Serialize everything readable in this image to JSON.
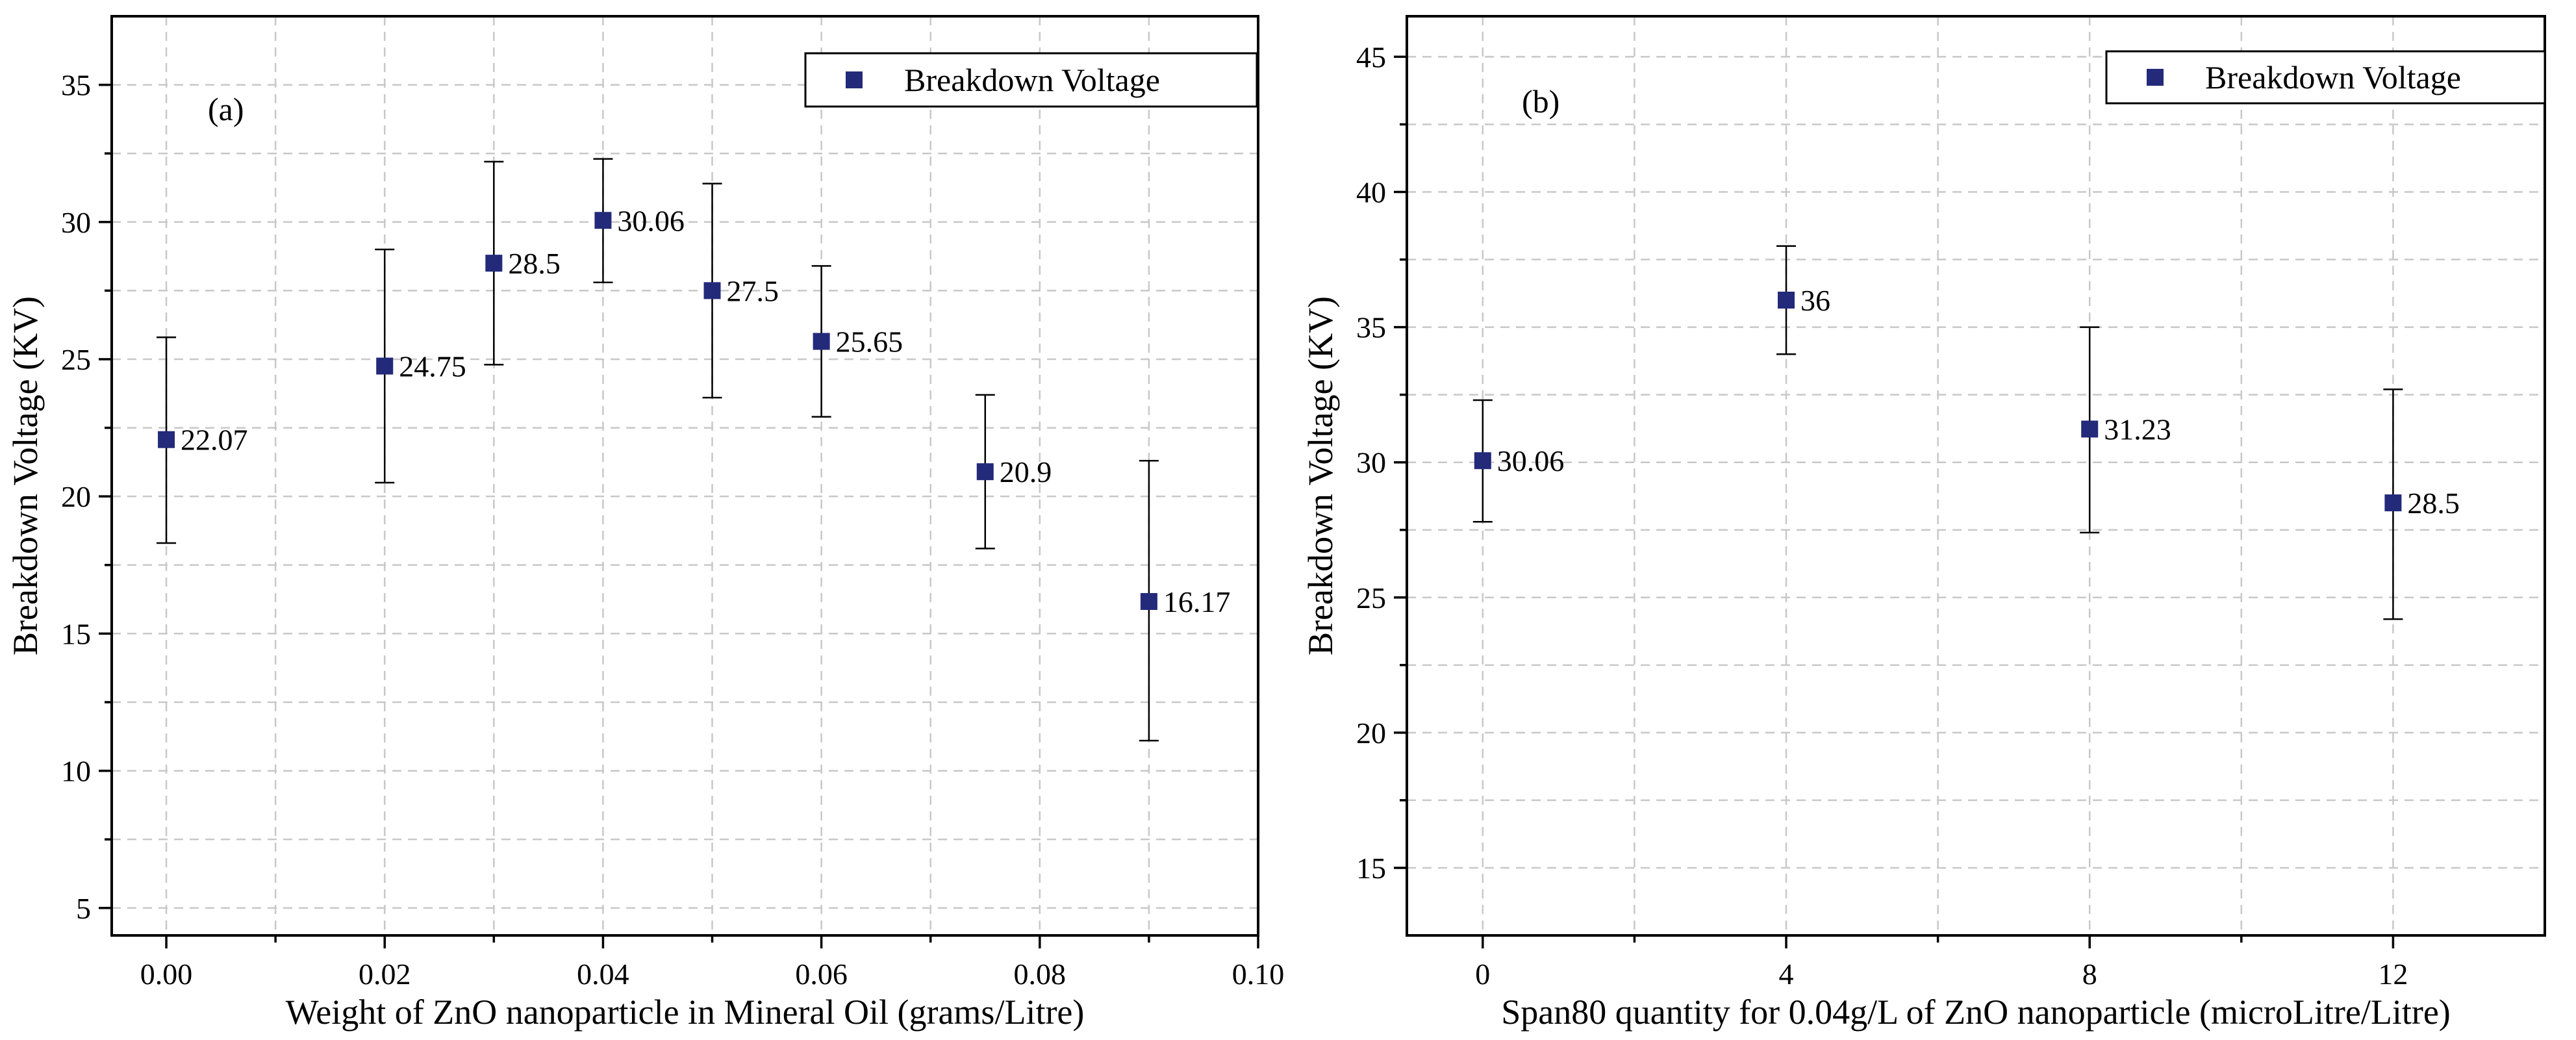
{
  "marker_color": "#232a7a",
  "chart_data": [
    {
      "id": "a",
      "type": "scatter",
      "panel_label": "(a)",
      "xlabel": "Weight of ZnO nanoparticle in Mineral Oil (grams/Litre)",
      "ylabel": "Breakdown Voltage (KV)",
      "xlim": [
        -0.005,
        0.1
      ],
      "ylim": [
        4,
        37.5
      ],
      "xticks": [
        0.0,
        0.02,
        0.04,
        0.06,
        0.08,
        0.1
      ],
      "xtick_labels": [
        "0.00",
        "0.02",
        "0.04",
        "0.06",
        "0.08",
        "0.10"
      ],
      "xminor": [
        0.01,
        0.03,
        0.05,
        0.07,
        0.09
      ],
      "yticks": [
        5,
        10,
        15,
        20,
        25,
        30,
        35
      ],
      "ytick_labels": [
        "5",
        "10",
        "15",
        "20",
        "25",
        "30",
        "35"
      ],
      "yminor": [
        7.5,
        12.5,
        17.5,
        22.5,
        27.5,
        32.5
      ],
      "grid": true,
      "legend": {
        "label": "Breakdown Voltage",
        "position": "top-right"
      },
      "series": [
        {
          "name": "Breakdown Voltage",
          "x": [
            0.0,
            0.02,
            0.03,
            0.04,
            0.05,
            0.06,
            0.075,
            0.09
          ],
          "y": [
            22.07,
            24.75,
            28.5,
            30.06,
            27.5,
            25.65,
            20.9,
            16.17
          ],
          "err_low": [
            18.3,
            20.5,
            24.8,
            27.8,
            23.6,
            22.9,
            18.1,
            11.1
          ],
          "err_high": [
            25.8,
            29.0,
            32.2,
            32.3,
            31.4,
            28.4,
            23.7,
            21.3
          ],
          "labels": [
            "22.07",
            "24.75",
            "28.5",
            "30.06",
            "27.5",
            "25.65",
            "20.9",
            "16.17"
          ]
        }
      ]
    },
    {
      "id": "b",
      "type": "scatter",
      "panel_label": "(b)",
      "xlabel": "Span80 quantity for 0.04g/L of ZnO nanoparticle (microLitre/Litre)",
      "ylabel": "Breakdown Voltage (KV)",
      "xlim": [
        -1,
        14
      ],
      "ylim": [
        12.5,
        46.5
      ],
      "xticks": [
        0,
        4,
        8,
        12
      ],
      "xtick_labels": [
        "0",
        "4",
        "8",
        "12"
      ],
      "xminor": [
        2,
        6,
        10
      ],
      "yticks": [
        15,
        20,
        25,
        30,
        35,
        40,
        45
      ],
      "ytick_labels": [
        "15",
        "20",
        "25",
        "30",
        "35",
        "40",
        "45"
      ],
      "yminor": [
        17.5,
        22.5,
        27.5,
        32.5,
        37.5,
        42.5
      ],
      "grid": true,
      "legend": {
        "label": "Breakdown Voltage",
        "position": "top-right"
      },
      "series": [
        {
          "name": "Breakdown Voltage",
          "x": [
            0,
            4,
            8,
            12
          ],
          "y": [
            30.06,
            36,
            31.23,
            28.5
          ],
          "err_low": [
            27.8,
            34.0,
            27.4,
            24.2
          ],
          "err_high": [
            32.3,
            38.0,
            35.0,
            32.7
          ],
          "labels": [
            "30.06",
            "36",
            "31.23",
            "28.5"
          ]
        }
      ]
    }
  ]
}
